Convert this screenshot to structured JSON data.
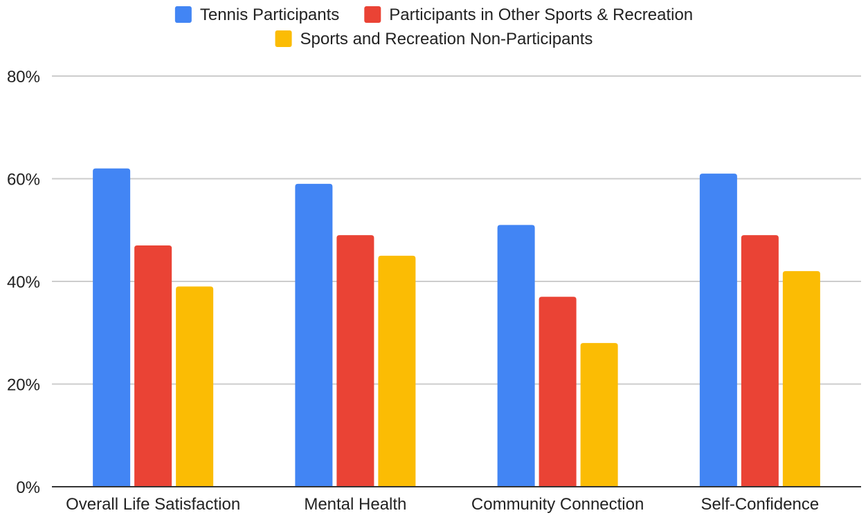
{
  "chart_data": {
    "type": "bar",
    "title": "",
    "xlabel": "",
    "ylabel": "",
    "categories": [
      "Overall Life Satisfaction",
      "Mental Health",
      "Community Connection",
      "Self-Confidence"
    ],
    "series": [
      {
        "name": "Tennis Participants",
        "color": "#4285F4",
        "values": [
          62,
          59,
          51,
          61
        ]
      },
      {
        "name": "Participants in Other Sports & Recreation",
        "color": "#EA4335",
        "values": [
          47,
          49,
          37,
          49
        ]
      },
      {
        "name": "Sports and Recreation Non-Participants",
        "color": "#FBBC04",
        "values": [
          39,
          45,
          28,
          42
        ]
      }
    ],
    "ylim": [
      0,
      80
    ],
    "yticks": [
      0,
      20,
      40,
      60,
      80
    ],
    "ytick_labels": [
      "0%",
      "20%",
      "40%",
      "60%",
      "80%"
    ],
    "grid": true,
    "legend_position": "top"
  }
}
